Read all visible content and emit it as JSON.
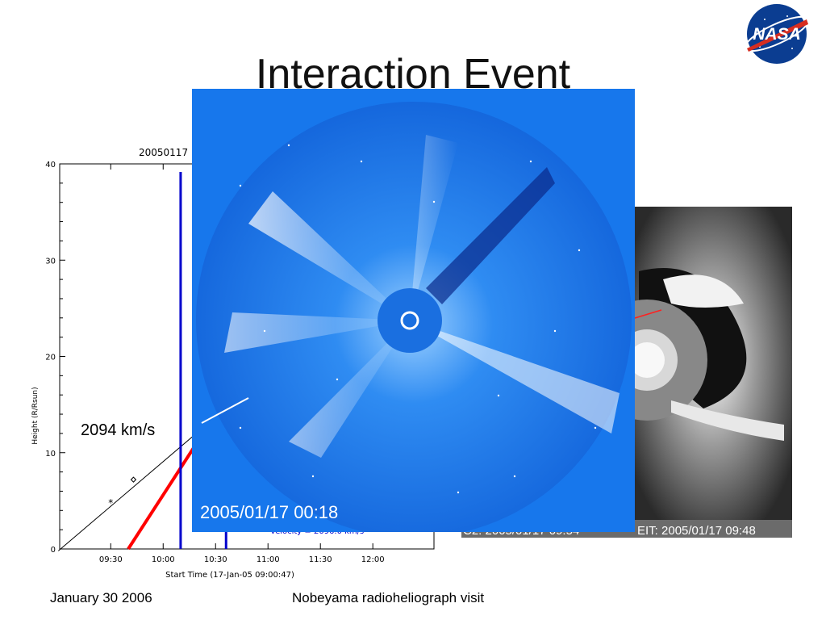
{
  "slide": {
    "title": "Interaction Event",
    "footer_left": "January 30 2006",
    "footer_center": "Nobeyama radioheliograph visit"
  },
  "logo": {
    "text": "NASA",
    "icon": "nasa-meatball-icon"
  },
  "height_time_plot": {
    "title": "20050117",
    "ylabel": "Height (R/Rsun)",
    "xlabel": "Start Time (17-Jan-05 09:00:47)",
    "yticks": [
      "0",
      "10",
      "20",
      "30",
      "40"
    ],
    "xticks": [
      "09:30",
      "10:00",
      "10:30",
      "11:00",
      "11:30",
      "12:00"
    ],
    "velocity_note": "Velocity = 2096.0 km/s",
    "speed_label": "2094 km/s"
  },
  "chart_data": {
    "type": "scatter",
    "title": "20050117",
    "xlabel": "Start Time (17-Jan-05 09:00:47)",
    "ylabel": "Height (R/Rsun)",
    "xlim": [
      "09:00:47",
      "12:35"
    ],
    "ylim": [
      0,
      40
    ],
    "series": [
      {
        "kind": "markers",
        "x": [
          "09:30",
          "09:43"
        ],
        "y": [
          4.8,
          7.2
        ]
      },
      {
        "kind": "linear-fit",
        "color": "#000000",
        "x": [
          "09:00",
          "10:28"
        ],
        "y": [
          -0.2,
          13.4
        ]
      },
      {
        "kind": "linear-fit",
        "color": "#ff0000",
        "x": [
          "09:40",
          "10:21"
        ],
        "y": [
          0,
          11.5
        ]
      }
    ],
    "vertical_markers": [
      {
        "color": "#0000cc",
        "x": "10:10"
      },
      {
        "color": "#0000cc",
        "x": "10:36"
      }
    ]
  },
  "c2_image": {
    "caption_left": "C2: 2005/01/17 09:54",
    "caption_right": "EIT: 2005/01/17 09:48"
  },
  "c3_image": {
    "timestamp": "2005/01/17 00:18"
  },
  "colors": {
    "c3_blue": "#1a7df0",
    "fit_red": "#ff0000",
    "marker_blue": "#0000cc"
  }
}
